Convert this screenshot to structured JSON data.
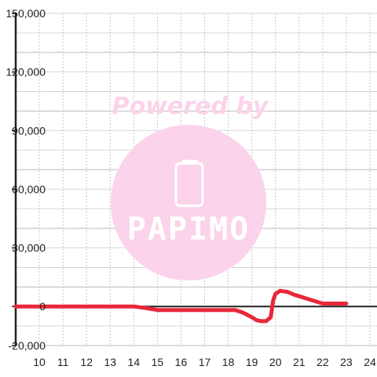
{
  "watermark": {
    "line1": "Powered by",
    "brand": "PAPIMO",
    "color": "#fbd3ea"
  },
  "chart_data": {
    "type": "line",
    "title": "",
    "xlabel": "",
    "ylabel": "",
    "xlim": [
      9.0,
      24.3
    ],
    "ylim": [
      -20000,
      150000
    ],
    "xticks": [
      10,
      11,
      12,
      13,
      14,
      15,
      16,
      17,
      18,
      19,
      20,
      21,
      22,
      23,
      24
    ],
    "xtick_labels": [
      "10",
      "11",
      "12",
      "13",
      "14",
      "15",
      "16",
      "17",
      "18",
      "19",
      "20",
      "21",
      "22",
      "23",
      "24"
    ],
    "yticks": [
      -20000,
      0,
      30000,
      60000,
      90000,
      120000,
      150000
    ],
    "ytick_labels": [
      "-20,000",
      "0",
      "30,000",
      "60,000",
      "90,000",
      "120,000",
      "150,000"
    ],
    "grid": true,
    "series": [
      {
        "color": "#e8283a",
        "x": [
          9.0,
          14.0,
          14.5,
          15.0,
          18.3,
          18.6,
          19.0,
          19.2,
          19.4,
          19.6,
          19.8,
          19.9,
          20.0,
          20.2,
          20.5,
          20.8,
          21.2,
          21.6,
          22.0,
          22.5,
          23.0
        ],
        "y": [
          0,
          0,
          -800,
          -1800,
          -1800,
          -3000,
          -5500,
          -7000,
          -7500,
          -7500,
          -5500,
          3000,
          6500,
          8000,
          7500,
          6000,
          4500,
          3000,
          1500,
          1500,
          1500
        ]
      }
    ]
  }
}
